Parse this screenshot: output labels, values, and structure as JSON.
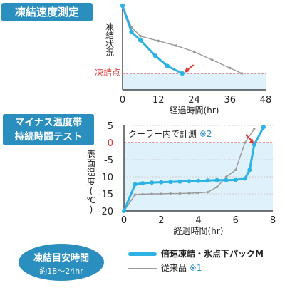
{
  "section1_title": "凍結速度測定",
  "section2_title_line1": "マイナス温度帯",
  "section2_title_line2": "持続時間テスト",
  "chart_data": [
    {
      "type": "line",
      "title": "凍結速度測定",
      "xlabel": "経過時間(hr)",
      "ylabel": "凍結状況",
      "xlim": [
        0,
        48
      ],
      "x_ticks": [
        "0",
        "12",
        "24",
        "36",
        "48"
      ],
      "threshold_label": "凍結点",
      "series": [
        {
          "name": "倍速凍結・氷点下パックM",
          "x": [
            0,
            3,
            6,
            11,
            15,
            20
          ],
          "y": [
            100,
            61,
            49,
            26,
            11,
            0
          ]
        },
        {
          "name": "従来品",
          "x": [
            0,
            3,
            6,
            12,
            18,
            24,
            30,
            36,
            40
          ],
          "y": [
            100,
            68,
            55,
            48,
            41,
            32,
            20,
            8,
            0
          ]
        }
      ]
    },
    {
      "type": "line",
      "title": "マイナス温度帯持続時間テスト",
      "xlabel": "経過時間(hr)",
      "ylabel": "表面温度(℃)",
      "xlim": [
        0,
        8
      ],
      "ylim": [
        -20,
        5
      ],
      "x_ticks": [
        "0",
        "2",
        "4",
        "6",
        "8"
      ],
      "y_ticks": [
        "5",
        "0",
        "-5",
        "-10",
        "-15",
        "-20"
      ],
      "annotation": "クーラー内で計測",
      "annotation_note": "※2",
      "series": [
        {
          "name": "倍速凍結・氷点下パックM",
          "x": [
            0,
            0.6,
            1.0,
            1.5,
            2.0,
            2.5,
            3.0,
            3.5,
            4.0,
            4.5,
            5.0,
            5.5,
            6.0,
            6.5,
            6.75,
            7.0,
            7.5
          ],
          "y": [
            -20,
            -12.2,
            -11.9,
            -11.7,
            -11.6,
            -11.5,
            -11.4,
            -11.3,
            -11.2,
            -11.1,
            -11.0,
            -11.0,
            -10.9,
            -10.5,
            -8.0,
            -0.6,
            4.5
          ]
        },
        {
          "name": "従来品",
          "x": [
            0,
            0.6,
            1.0,
            1.5,
            2.0,
            2.5,
            3.0,
            3.5,
            4.0,
            4.5,
            5.0,
            5.5,
            6.0,
            6.5,
            7.0
          ],
          "y": [
            -20,
            -15.2,
            -15.1,
            -15.0,
            -15.0,
            -14.9,
            -14.9,
            -14.8,
            -14.7,
            -14.5,
            -13.0,
            -10.0,
            -8.0,
            0,
            4.0
          ]
        }
      ]
    }
  ],
  "oval": {
    "title": "凍結目安時間",
    "subtitle": "約18〜24hr"
  },
  "legend": {
    "main": "倍速凍結・氷点下パックM",
    "old": "従来品",
    "old_note": "※1"
  },
  "colors": {
    "main": "#2cb3e4",
    "old": "#999999",
    "accent": "#2a8fbf",
    "threshold": "#d83a3a",
    "shade": "#dff1fb"
  }
}
